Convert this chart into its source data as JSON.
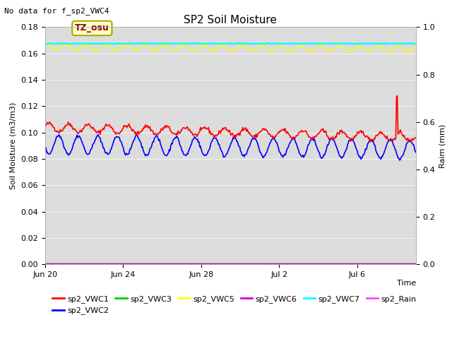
{
  "title": "SP2 Soil Moisture",
  "no_data_text": "No data for f_sp2_VWC4",
  "annotation_text": "TZ_osu",
  "xlabel": "Time",
  "ylabel_left": "Soil Moisture (m3/m3)",
  "ylabel_right": "Raim (mm)",
  "ylim_left": [
    0.0,
    0.18
  ],
  "ylim_right": [
    0.0,
    1.0
  ],
  "yticks_left": [
    0.0,
    0.02,
    0.04,
    0.06,
    0.08,
    0.1,
    0.12,
    0.14,
    0.16,
    0.18
  ],
  "yticks_right": [
    0.0,
    0.2,
    0.4,
    0.6,
    0.8,
    1.0
  ],
  "background_color": "#dcdcdc",
  "grid_color": "#f0f0f0",
  "colors": {
    "sp2_VWC1": "#ff0000",
    "sp2_VWC2": "#0000ff",
    "sp2_VWC3": "#00cc00",
    "sp2_VWC5": "#ffff00",
    "sp2_VWC6": "#cc00cc",
    "sp2_VWC7": "#00ffff",
    "sp2_Rain": "#ff44ff"
  },
  "legend_entries": [
    {
      "label": "sp2_VWC1",
      "color": "#ff0000"
    },
    {
      "label": "sp2_VWC2",
      "color": "#0000ff"
    },
    {
      "label": "sp2_VWC3",
      "color": "#00cc00"
    },
    {
      "label": "sp2_VWC5",
      "color": "#ffff00"
    },
    {
      "label": "sp2_VWC6",
      "color": "#cc00cc"
    },
    {
      "label": "sp2_VWC7",
      "color": "#00ffff"
    },
    {
      "label": "sp2_Rain",
      "color": "#ff44ff"
    }
  ],
  "xtick_labels": [
    "Jun 20",
    "Jun 24",
    "Jun 28",
    "Jul 2",
    "Jul 6"
  ],
  "xtick_positions": [
    0,
    4,
    8,
    12,
    16
  ],
  "xlim": [
    0,
    19
  ],
  "n_days": 19,
  "figsize": [
    6.4,
    4.8
  ],
  "dpi": 100
}
